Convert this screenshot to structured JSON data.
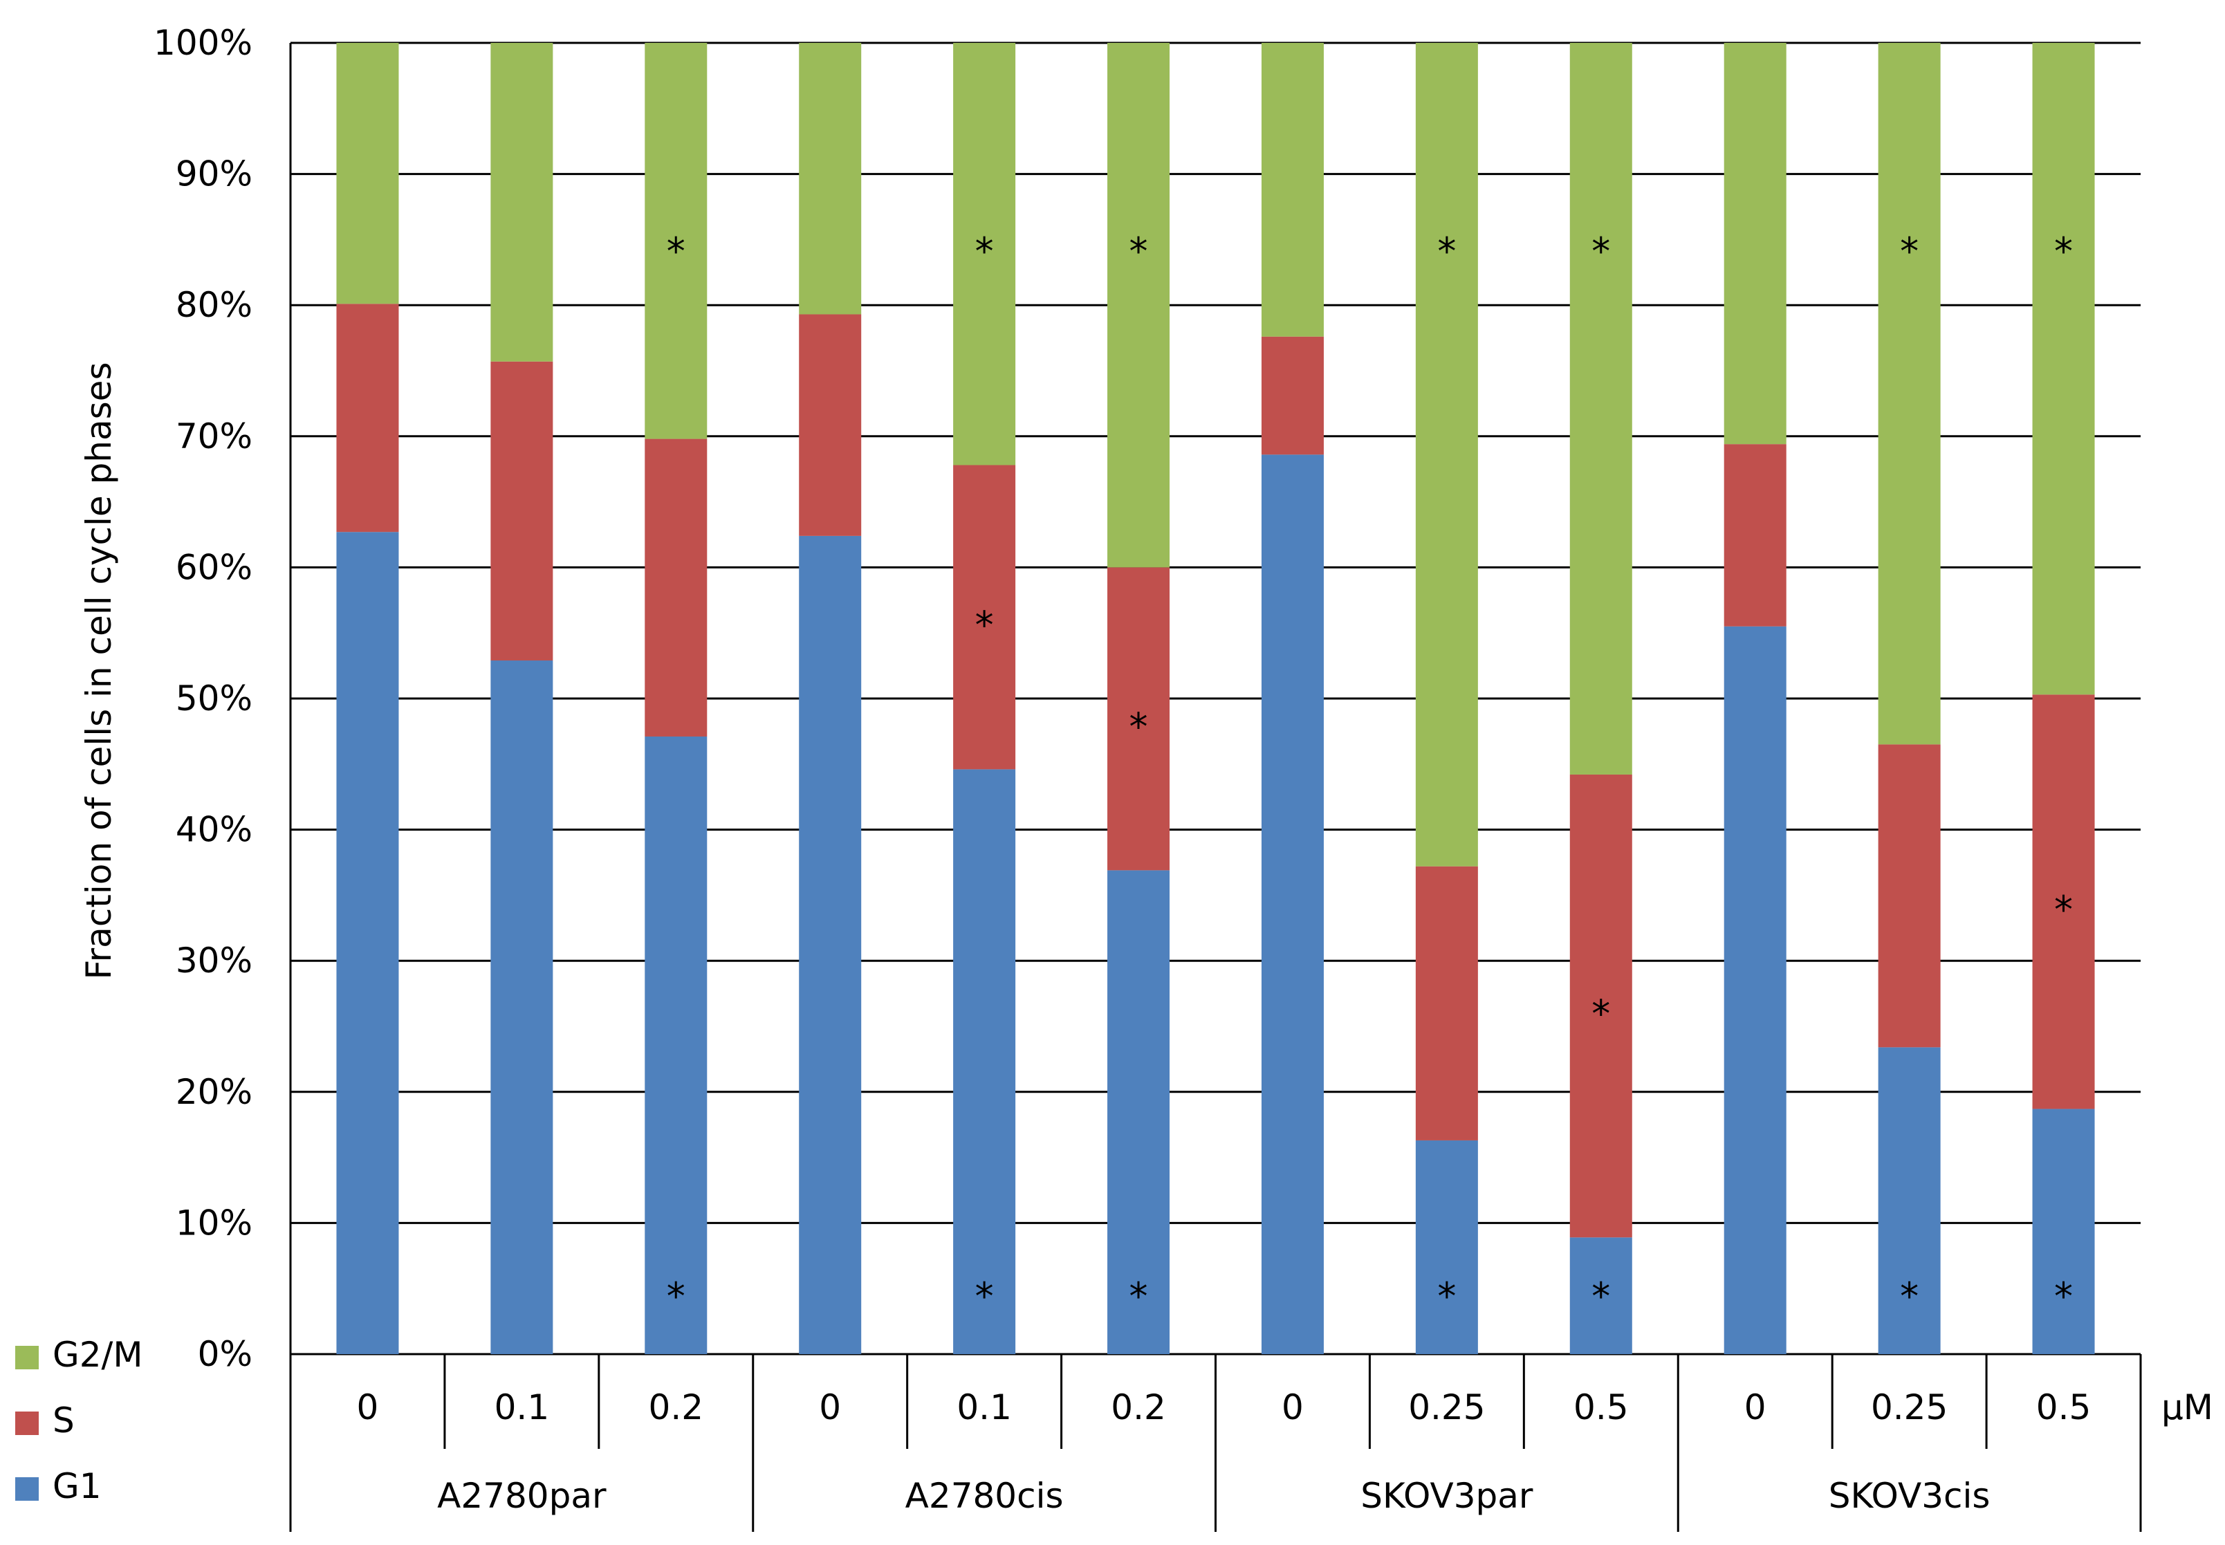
{
  "chart_data": {
    "type": "bar",
    "stacked": true,
    "percent_stacked": true,
    "ylabel": "Fraction of cells in cell cycle phases",
    "ylim": [
      0,
      100
    ],
    "yticks": [
      "0%",
      "10%",
      "20%",
      "30%",
      "40%",
      "50%",
      "60%",
      "70%",
      "80%",
      "90%",
      "100%"
    ],
    "unit_label": "µM",
    "groups": [
      {
        "name": "A2780par",
        "doses": [
          "0",
          "0.1",
          "0.2"
        ]
      },
      {
        "name": "A2780cis",
        "doses": [
          "0",
          "0.1",
          "0.2"
        ]
      },
      {
        "name": "SKOV3par",
        "doses": [
          "0",
          "0.25",
          "0.5"
        ]
      },
      {
        "name": "SKOV3cis",
        "doses": [
          "0",
          "0.25",
          "0.5"
        ]
      }
    ],
    "series": [
      {
        "name": "G1",
        "color": "#4f81bd",
        "values": [
          62.7,
          52.9,
          47.1,
          62.4,
          44.6,
          36.9,
          68.6,
          16.3,
          8.9,
          55.5,
          23.4,
          18.7
        ],
        "significant": [
          false,
          false,
          true,
          false,
          true,
          true,
          false,
          true,
          true,
          false,
          true,
          true
        ]
      },
      {
        "name": "S",
        "color": "#c0504d",
        "values": [
          17.4,
          22.8,
          22.7,
          16.9,
          23.2,
          23.1,
          9.0,
          20.9,
          35.3,
          13.9,
          23.1,
          31.6
        ],
        "significant": [
          false,
          false,
          false,
          false,
          true,
          true,
          false,
          false,
          true,
          false,
          false,
          true
        ]
      },
      {
        "name": "G2/M",
        "color": "#9bbb59",
        "values": [
          19.9,
          24.3,
          30.2,
          20.7,
          32.2,
          40.0,
          22.4,
          62.8,
          55.8,
          30.6,
          53.5,
          49.7
        ],
        "significant": [
          false,
          false,
          true,
          false,
          true,
          true,
          false,
          true,
          true,
          false,
          true,
          true
        ]
      }
    ],
    "significance_marker": "*",
    "legend_position": "bottom-left",
    "grid": true
  }
}
